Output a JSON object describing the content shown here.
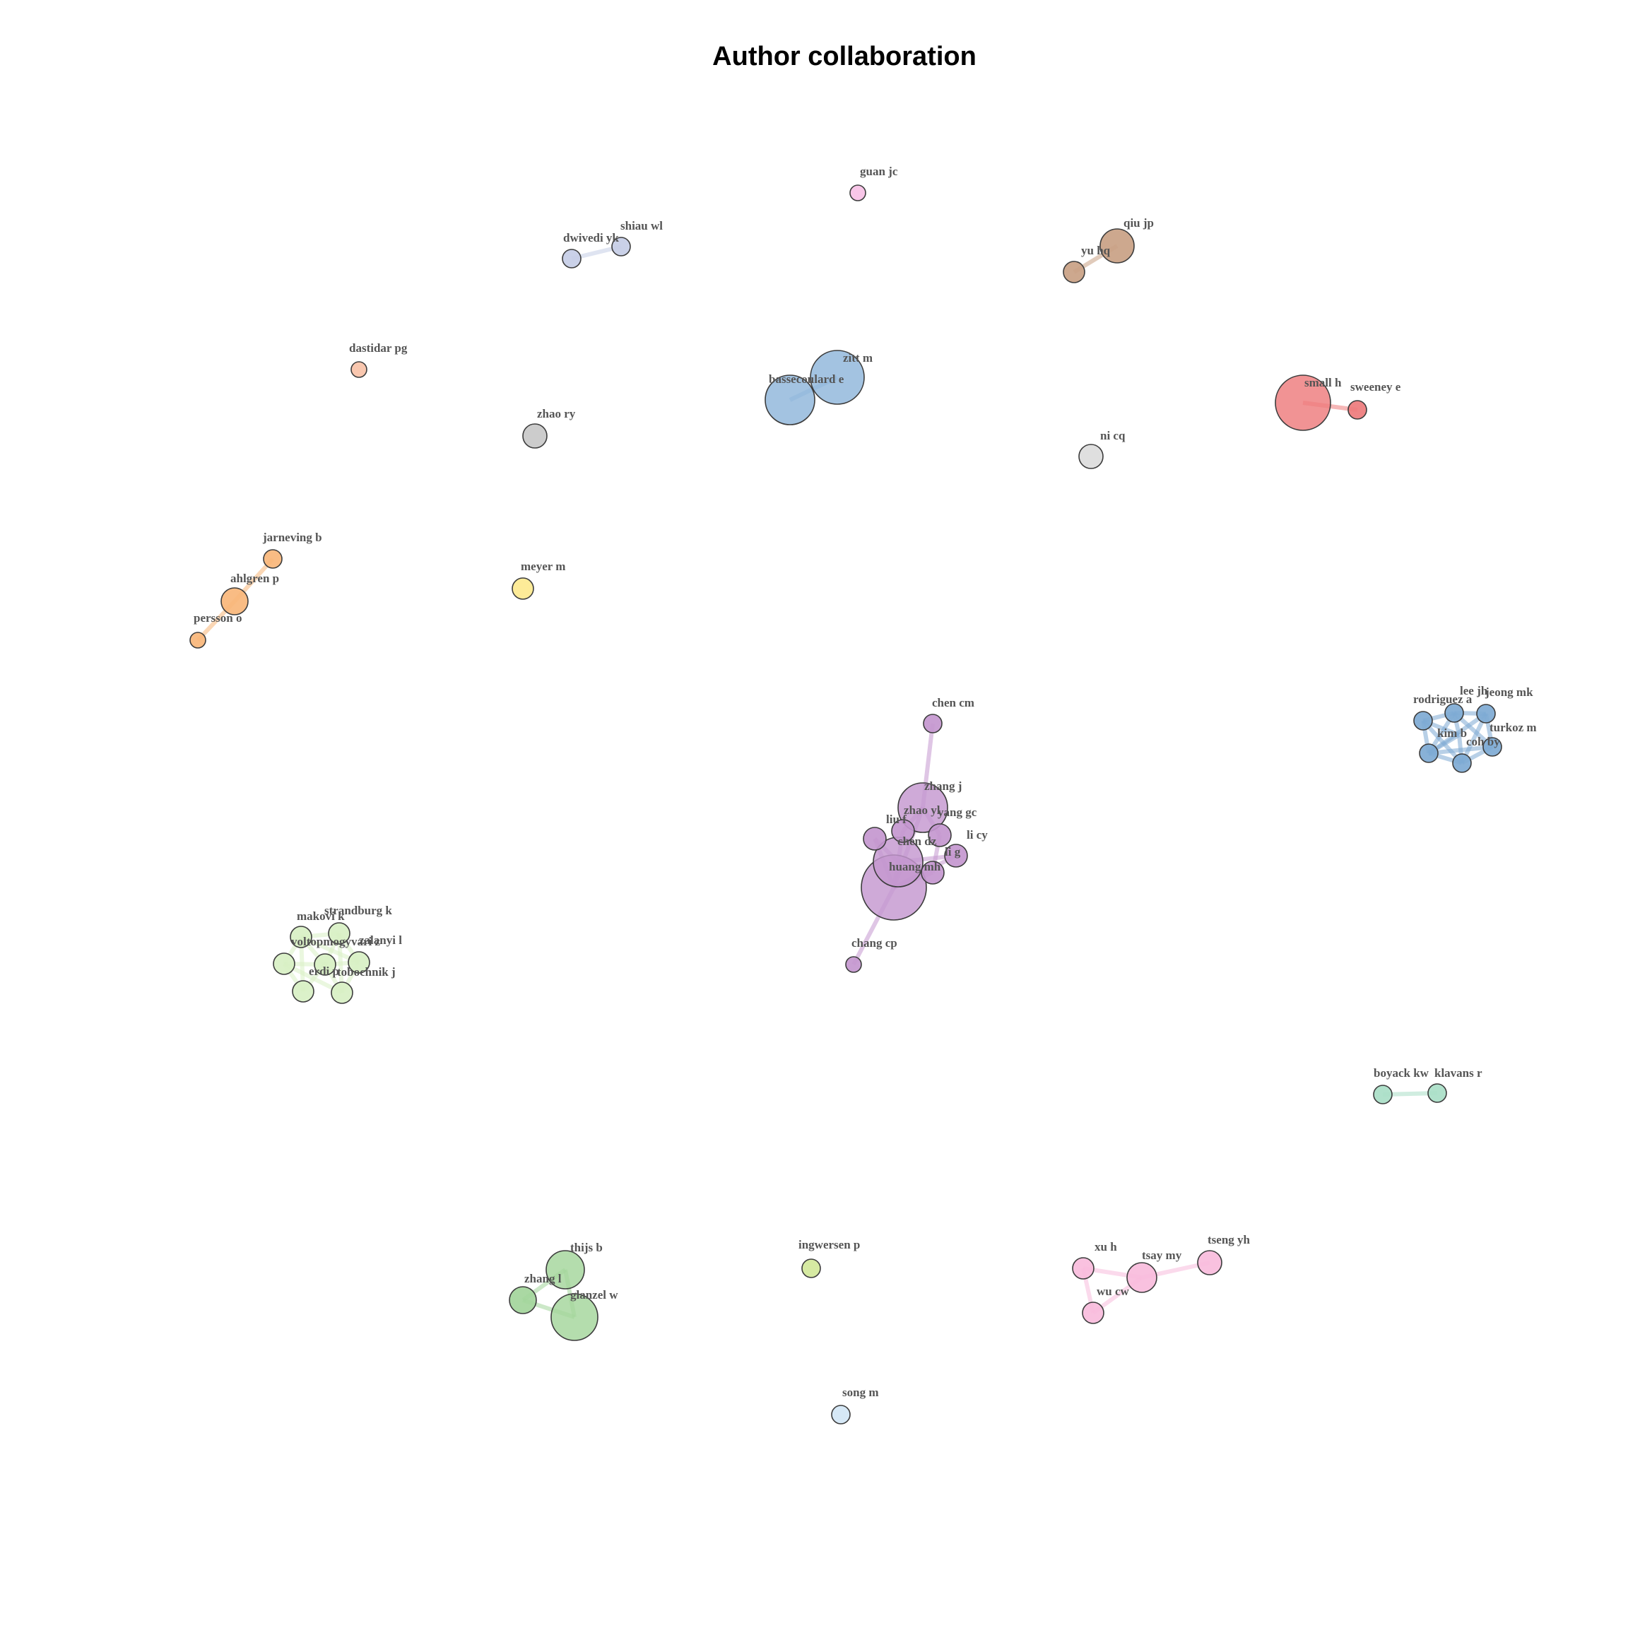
{
  "title": "Author collaboration",
  "nodes": [
    {
      "id": "guan jc",
      "label": "guan jc",
      "color": "#f7c1e6"
    },
    {
      "id": "dwivedi yk",
      "label": "dwivedi yk",
      "color": "#c5cde6"
    },
    {
      "id": "shiau wl",
      "label": "shiau wl",
      "color": "#c5cde6"
    },
    {
      "id": "qiu jp",
      "label": "qiu jp",
      "color": "#c9a184"
    },
    {
      "id": "yu hq",
      "label": "yu hq",
      "color": "#c9a184"
    },
    {
      "id": "dastidar pg",
      "label": "dastidar pg",
      "color": "#f9c2a8"
    },
    {
      "id": "zhao ry",
      "label": "zhao ry",
      "color": "#c8c8c8"
    },
    {
      "id": "zitt m",
      "label": "zitt m",
      "color": "#8fb6da"
    },
    {
      "id": "bassecoulard e",
      "label": "bassecoulard e",
      "color": "#8fb6da"
    },
    {
      "id": "small h",
      "label": "small h",
      "color": "#ee7b7c"
    },
    {
      "id": "sweeney e",
      "label": "sweeney e",
      "color": "#ee7b7c"
    },
    {
      "id": "ni cq",
      "label": "ni cq",
      "color": "#dcdcdc"
    },
    {
      "id": "jarneving b",
      "label": "jarneving b",
      "color": "#f8b679"
    },
    {
      "id": "ahlgren p",
      "label": "ahlgren p",
      "color": "#f8b679"
    },
    {
      "id": "persson o",
      "label": "persson o",
      "color": "#f8b679"
    },
    {
      "id": "meyer m",
      "label": "meyer m",
      "color": "#fde98f"
    },
    {
      "id": "chen cm",
      "label": "chen cm",
      "color": "#c497cf"
    },
    {
      "id": "zhang j",
      "label": "zhang j",
      "color": "#c497cf"
    },
    {
      "id": "zhao yl",
      "label": "zhao yl",
      "color": "#c497cf"
    },
    {
      "id": "yang gc",
      "label": "yang gc",
      "color": "#c497cf"
    },
    {
      "id": "liu f",
      "label": "liu f",
      "color": "#c497cf"
    },
    {
      "id": "li cy",
      "label": "li cy",
      "color": "#c497cf"
    },
    {
      "id": "chen dz",
      "label": "chen dz",
      "color": "#c497cf"
    },
    {
      "id": "li g",
      "label": "li g",
      "color": "#c497cf"
    },
    {
      "id": "huang mh",
      "label": "huang mh",
      "color": "#c497cf"
    },
    {
      "id": "chang cp",
      "label": "chang cp",
      "color": "#c497cf"
    },
    {
      "id": "rodriguez a",
      "label": "rodriguez a",
      "color": "#7eaad4"
    },
    {
      "id": "lee jh",
      "label": "lee jh",
      "color": "#7eaad4"
    },
    {
      "id": "jeong mk",
      "label": "jeong mk",
      "color": "#7eaad4"
    },
    {
      "id": "turkoz m",
      "label": "turkoz m",
      "color": "#7eaad4"
    },
    {
      "id": "kim b",
      "label": "kim b",
      "color": "#7eaad4"
    },
    {
      "id": "coh by",
      "label": "coh by",
      "color": "#7eaad4"
    },
    {
      "id": "rodriguez-4",
      "label": "",
      "color": "#7eaad4"
    },
    {
      "id": "makovi k",
      "label": "makovi k",
      "color": "#d8f0c4"
    },
    {
      "id": "strandburg k",
      "label": "strandburg k",
      "color": "#d8f0c4"
    },
    {
      "id": "voltopmogyvari z",
      "label": "voltopmogyvari z",
      "color": "#d8f0c4"
    },
    {
      "id": "zalanyi l",
      "label": "zalanyi l",
      "color": "#d8f0c4"
    },
    {
      "id": "erdi p",
      "label": "erdi p",
      "color": "#d8f0c4"
    },
    {
      "id": "tobochnik j",
      "label": "tobochnik j",
      "color": "#d8f0c4"
    },
    {
      "id": "green-7",
      "label": "",
      "color": "#d8f0c4"
    },
    {
      "id": "boyack kw",
      "label": "boyack kw",
      "color": "#a9dec7"
    },
    {
      "id": "klavans r",
      "label": "klavans r",
      "color": "#a9dec7"
    },
    {
      "id": "thijs b",
      "label": "thijs b",
      "color": "#a3d59b"
    },
    {
      "id": "zhang l",
      "label": "zhang l",
      "color": "#a3d59b"
    },
    {
      "id": "glanzel w",
      "label": "glanzel w",
      "color": "#a3d59b"
    },
    {
      "id": "ingwersen p",
      "label": "ingwersen p",
      "color": "#d2e89a"
    },
    {
      "id": "xu h",
      "label": "xu h",
      "color": "#f8bcdc"
    },
    {
      "id": "tsay my",
      "label": "tsay my",
      "color": "#f8bcdc"
    },
    {
      "id": "tseng yh",
      "label": "tseng yh",
      "color": "#f8bcdc"
    },
    {
      "id": "wu cw",
      "label": "wu cw",
      "color": "#f8bcdc"
    },
    {
      "id": "song m",
      "label": "song m",
      "color": "#d3e6f5"
    }
  ],
  "edges": [
    {
      "source": "dwivedi yk",
      "target": "shiau wl",
      "color": "#c5cde6"
    },
    {
      "source": "yu hq",
      "target": "qiu jp",
      "color": "#c9a184"
    },
    {
      "source": "bassecoulard e",
      "target": "zitt m",
      "color": "#8fb6da"
    },
    {
      "source": "small h",
      "target": "sweeney e",
      "color": "#ee7b7c"
    },
    {
      "source": "jarneving b",
      "target": "ahlgren p",
      "color": "#f8b679"
    },
    {
      "source": "ahlgren p",
      "target": "persson o",
      "color": "#f8b679"
    },
    {
      "source": "chen cm",
      "target": "zhang j",
      "color": "#c497cf"
    },
    {
      "source": "zhang j",
      "target": "huang mh",
      "color": "#c497cf"
    },
    {
      "source": "zhang j",
      "target": "zhao yl",
      "color": "#c497cf"
    },
    {
      "source": "zhang j",
      "target": "yang gc",
      "color": "#c497cf"
    },
    {
      "source": "zhao yl",
      "target": "chen dz",
      "color": "#c497cf"
    },
    {
      "source": "yang gc",
      "target": "li g",
      "color": "#c497cf"
    },
    {
      "source": "liu f",
      "target": "chen dz",
      "color": "#c497cf"
    },
    {
      "source": "liu f",
      "target": "huang mh",
      "color": "#c497cf"
    },
    {
      "source": "chen dz",
      "target": "huang mh",
      "color": "#c497cf"
    },
    {
      "source": "li g",
      "target": "huang mh",
      "color": "#c497cf"
    },
    {
      "source": "li cy",
      "target": "chen dz",
      "color": "#c497cf"
    },
    {
      "source": "li cy",
      "target": "huang mh",
      "color": "#c497cf"
    },
    {
      "source": "huang mh",
      "target": "chang cp",
      "color": "#c497cf"
    },
    {
      "source": "rodriguez a",
      "target": "lee jh",
      "color": "#7eaad4"
    },
    {
      "source": "rodriguez a",
      "target": "kim b",
      "color": "#7eaad4"
    },
    {
      "source": "rodriguez a",
      "target": "coh by",
      "color": "#7eaad4"
    },
    {
      "source": "rodriguez a",
      "target": "rodriguez-4",
      "color": "#7eaad4"
    },
    {
      "source": "lee jh",
      "target": "jeong mk",
      "color": "#7eaad4"
    },
    {
      "source": "lee jh",
      "target": "kim b",
      "color": "#7eaad4"
    },
    {
      "source": "lee jh",
      "target": "turkoz m",
      "color": "#7eaad4"
    },
    {
      "source": "lee jh",
      "target": "rodriguez-4",
      "color": "#7eaad4"
    },
    {
      "source": "jeong mk",
      "target": "turkoz m",
      "color": "#7eaad4"
    },
    {
      "source": "jeong mk",
      "target": "coh by",
      "color": "#7eaad4"
    },
    {
      "source": "jeong mk",
      "target": "kim b",
      "color": "#7eaad4"
    },
    {
      "source": "turkoz m",
      "target": "coh by",
      "color": "#7eaad4"
    },
    {
      "source": "turkoz m",
      "target": "kim b",
      "color": "#7eaad4"
    },
    {
      "source": "kim b",
      "target": "coh by",
      "color": "#7eaad4"
    },
    {
      "source": "kim b",
      "target": "rodriguez-4",
      "color": "#7eaad4"
    },
    {
      "source": "coh by",
      "target": "rodriguez-4",
      "color": "#7eaad4"
    },
    {
      "source": "makovi k",
      "target": "strandburg k",
      "color": "#d8f0c4"
    },
    {
      "source": "makovi k",
      "target": "voltopmogyvari z",
      "color": "#d8f0c4"
    },
    {
      "source": "makovi k",
      "target": "zalanyi l",
      "color": "#d8f0c4"
    },
    {
      "source": "makovi k",
      "target": "erdi p",
      "color": "#d8f0c4"
    },
    {
      "source": "makovi k",
      "target": "green-7",
      "color": "#d8f0c4"
    },
    {
      "source": "strandburg k",
      "target": "zalanyi l",
      "color": "#d8f0c4"
    },
    {
      "source": "strandburg k",
      "target": "voltopmogyvari z",
      "color": "#d8f0c4"
    },
    {
      "source": "strandburg k",
      "target": "tobochnik j",
      "color": "#d8f0c4"
    },
    {
      "source": "voltopmogyvari z",
      "target": "green-7",
      "color": "#d8f0c4"
    },
    {
      "source": "voltopmogyvari z",
      "target": "erdi p",
      "color": "#d8f0c4"
    },
    {
      "source": "voltopmogyvari z",
      "target": "zalanyi l",
      "color": "#d8f0c4"
    },
    {
      "source": "zalanyi l",
      "target": "tobochnik j",
      "color": "#d8f0c4"
    },
    {
      "source": "erdi p",
      "target": "tobochnik j",
      "color": "#d8f0c4"
    },
    {
      "source": "erdi p",
      "target": "green-7",
      "color": "#d8f0c4"
    },
    {
      "source": "tobochnik j",
      "target": "voltopmogyvari z",
      "color": "#d8f0c4"
    },
    {
      "source": "boyack kw",
      "target": "klavans r",
      "color": "#a9dec7"
    },
    {
      "source": "thijs b",
      "target": "glanzel w",
      "color": "#a3d59b"
    },
    {
      "source": "zhang l",
      "target": "glanzel w",
      "color": "#a3d59b"
    },
    {
      "source": "zhang l",
      "target": "thijs b",
      "color": "#a3d59b"
    },
    {
      "source": "xu h",
      "target": "tsay my",
      "color": "#f8bcdc"
    },
    {
      "source": "xu h",
      "target": "wu cw",
      "color": "#f8bcdc"
    },
    {
      "source": "tsay my",
      "target": "tseng yh",
      "color": "#f8bcdc"
    },
    {
      "source": "tsay my",
      "target": "wu cw",
      "color": "#f8bcdc"
    }
  ]
}
